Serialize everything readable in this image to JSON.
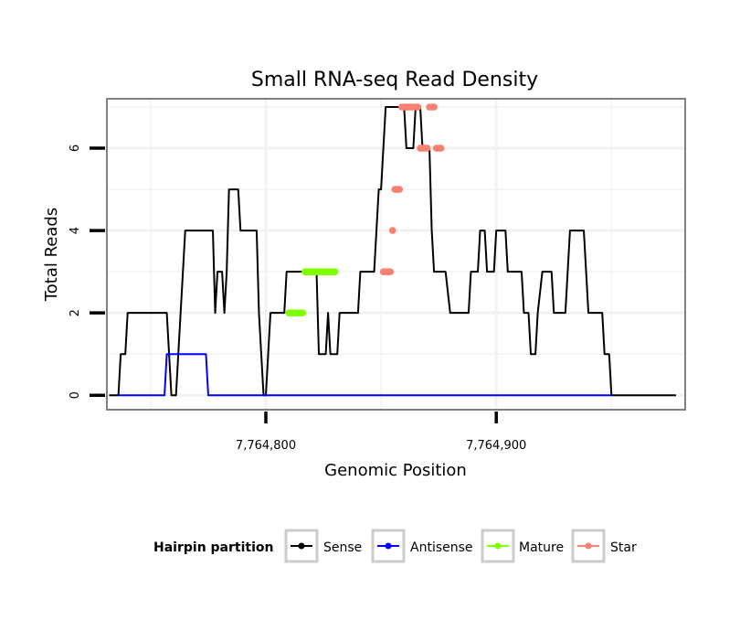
{
  "chart_data": {
    "type": "line",
    "title": "Small RNA-seq Read Density",
    "xlabel": "Genomic Position",
    "ylabel": "Total Reads",
    "xlim": [
      7764731,
      7764982
    ],
    "ylim": [
      -0.35,
      7.2
    ],
    "x_ticks": [
      7764800,
      7764900
    ],
    "x_tick_labels": [
      "7,764,800",
      "7,764,900"
    ],
    "y_ticks": [
      0,
      2,
      4,
      6
    ],
    "y_tick_labels": [
      "0",
      "2",
      "4",
      "6"
    ],
    "grid": true,
    "legend": {
      "title": "Hairpin partition",
      "position": "bottom",
      "entries": [
        {
          "label": "Sense",
          "color": "#000000"
        },
        {
          "label": "Antisense",
          "color": "#0000ff"
        },
        {
          "label": "Mature",
          "color": "#7fff00"
        },
        {
          "label": "Star",
          "color": "#fa8072"
        }
      ]
    },
    "series": [
      {
        "name": "Sense",
        "color": "#000000",
        "points": [
          [
            7764732,
            0
          ],
          [
            7764736,
            0
          ],
          [
            7764737,
            1
          ],
          [
            7764739,
            1
          ],
          [
            7764740,
            2
          ],
          [
            7764757,
            2
          ],
          [
            7764758,
            1
          ],
          [
            7764759,
            0
          ],
          [
            7764761,
            0
          ],
          [
            7764764,
            3
          ],
          [
            7764765,
            4
          ],
          [
            7764777,
            4
          ],
          [
            7764778,
            2
          ],
          [
            7764779,
            3
          ],
          [
            7764781,
            3
          ],
          [
            7764782,
            2
          ],
          [
            7764783,
            3
          ],
          [
            7764784,
            5
          ],
          [
            7764788,
            5
          ],
          [
            7764789,
            4
          ],
          [
            7764796,
            4
          ],
          [
            7764797,
            2
          ],
          [
            7764798,
            1
          ],
          [
            7764799,
            0
          ],
          [
            7764800,
            0
          ],
          [
            7764801,
            1
          ],
          [
            7764802,
            2
          ],
          [
            7764808,
            2
          ],
          [
            7764809,
            3
          ],
          [
            7764822,
            3
          ],
          [
            7764823,
            1
          ],
          [
            7764826,
            1
          ],
          [
            7764827,
            2
          ],
          [
            7764828,
            1
          ],
          [
            7764831,
            1
          ],
          [
            7764832,
            2
          ],
          [
            7764840,
            2
          ],
          [
            7764841,
            3
          ],
          [
            7764847,
            3
          ],
          [
            7764848,
            4
          ],
          [
            7764849,
            5
          ],
          [
            7764850,
            5
          ],
          [
            7764852,
            7
          ],
          [
            7764860,
            7
          ],
          [
            7764861,
            6
          ],
          [
            7764864,
            6
          ],
          [
            7764865,
            7
          ],
          [
            7764867,
            7
          ],
          [
            7764868,
            6
          ],
          [
            7764871,
            6
          ],
          [
            7764872,
            4
          ],
          [
            7764873,
            3
          ],
          [
            7764878,
            3
          ],
          [
            7764880,
            2
          ],
          [
            7764888,
            2
          ],
          [
            7764889,
            3
          ],
          [
            7764892,
            3
          ],
          [
            7764893,
            4
          ],
          [
            7764895,
            4
          ],
          [
            7764896,
            3
          ],
          [
            7764899,
            3
          ],
          [
            7764900,
            4
          ],
          [
            7764904,
            4
          ],
          [
            7764905,
            3
          ],
          [
            7764911,
            3
          ],
          [
            7764912,
            2
          ],
          [
            7764914,
            2
          ],
          [
            7764915,
            1
          ],
          [
            7764917,
            1
          ],
          [
            7764918,
            2
          ],
          [
            7764920,
            3
          ],
          [
            7764924,
            3
          ],
          [
            7764925,
            2
          ],
          [
            7764930,
            2
          ],
          [
            7764931,
            3
          ],
          [
            7764932,
            4
          ],
          [
            7764938,
            4
          ],
          [
            7764939,
            3
          ],
          [
            7764940,
            2
          ],
          [
            7764946,
            2
          ],
          [
            7764947,
            1
          ],
          [
            7764949,
            1
          ],
          [
            7764950,
            0
          ],
          [
            7764978,
            0
          ]
        ]
      },
      {
        "name": "Antisense",
        "color": "#0000ff",
        "points": [
          [
            7764736,
            0
          ],
          [
            7764756,
            0
          ],
          [
            7764757,
            1
          ],
          [
            7764774,
            1
          ],
          [
            7764775,
            0
          ],
          [
            7764950,
            0
          ]
        ]
      },
      {
        "name": "Mature",
        "color": "#7fff00",
        "points": [
          [
            7764810,
            2
          ],
          [
            7764811,
            2
          ],
          [
            7764812,
            2
          ],
          [
            7764813,
            2
          ],
          [
            7764814,
            2
          ],
          [
            7764815,
            2
          ],
          [
            7764816,
            2
          ],
          [
            7764817,
            3
          ],
          [
            7764818,
            3
          ],
          [
            7764819,
            3
          ],
          [
            7764820,
            3
          ],
          [
            7764821,
            3
          ],
          [
            7764822,
            3
          ],
          [
            7764823,
            3
          ],
          [
            7764824,
            3
          ],
          [
            7764825,
            3
          ],
          [
            7764826,
            3
          ],
          [
            7764827,
            3
          ],
          [
            7764828,
            3
          ],
          [
            7764829,
            3
          ],
          [
            7764830,
            3
          ]
        ]
      },
      {
        "name": "Star",
        "color": "#fa8072",
        "points": [
          [
            7764851,
            3
          ],
          [
            7764852,
            3
          ],
          [
            7764853,
            3
          ],
          [
            7764854,
            3
          ],
          [
            7764855,
            4
          ],
          [
            7764856,
            5
          ],
          [
            7764857,
            5
          ],
          [
            7764858,
            5
          ],
          [
            7764859,
            7
          ],
          [
            7764860,
            7
          ],
          [
            7764861,
            7
          ],
          [
            7764862,
            7
          ],
          [
            7764863,
            7
          ],
          [
            7764864,
            7
          ],
          [
            7764865,
            7
          ],
          [
            7764866,
            7
          ],
          [
            7764867,
            6
          ],
          [
            7764868,
            6
          ],
          [
            7764869,
            6
          ],
          [
            7764870,
            6
          ],
          [
            7764871,
            7
          ],
          [
            7764872,
            7
          ],
          [
            7764873,
            7
          ],
          [
            7764874,
            6
          ],
          [
            7764875,
            6
          ],
          [
            7764876,
            6
          ]
        ]
      }
    ]
  }
}
